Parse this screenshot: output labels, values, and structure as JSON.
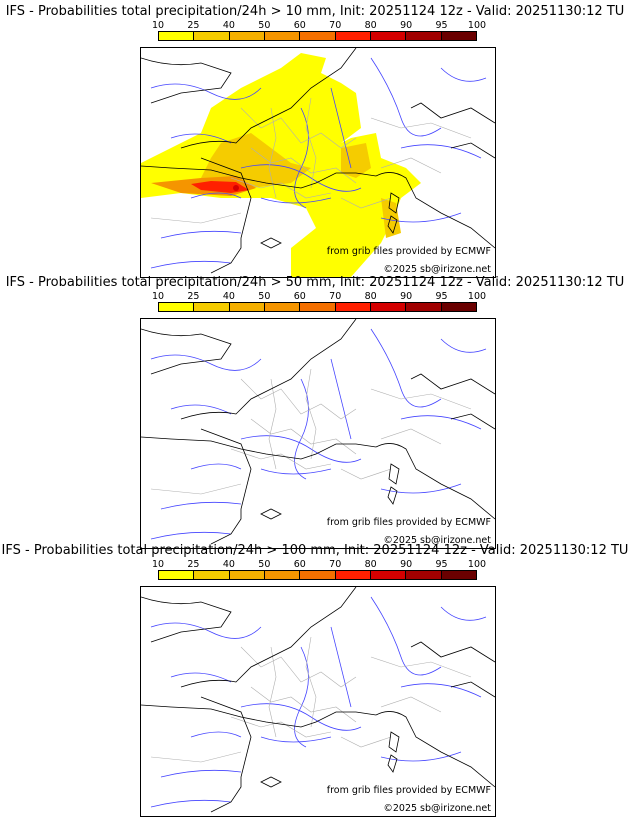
{
  "colorbar": {
    "ticks": [
      "10",
      "25",
      "40",
      "50",
      "60",
      "70",
      "80",
      "90",
      "95",
      "100"
    ],
    "colors": [
      "#ffff00",
      "#f5cc00",
      "#f5b000",
      "#f59500",
      "#f57000",
      "#ff2000",
      "#d40000",
      "#a00000",
      "#6a0000"
    ]
  },
  "panels": [
    {
      "title": "IFS - Probabilities total precipitation/24h > 10 mm, Init: 20251124 12z - Valid: 20251130:12 TU",
      "has_precip": true
    },
    {
      "title": "IFS - Probabilities total precipitation/24h > 50 mm, Init: 20251124 12z - Valid: 20251130:12 TU",
      "has_precip": false
    },
    {
      "title": "IFS - Probabilities total precipitation/24h > 100 mm, Init: 20251124 12z - Valid: 20251130:12 TU",
      "has_precip": false
    }
  ],
  "credits": {
    "source": "from grib files provided by ECMWF",
    "copyright": "©2025 sb@irizone.net"
  }
}
